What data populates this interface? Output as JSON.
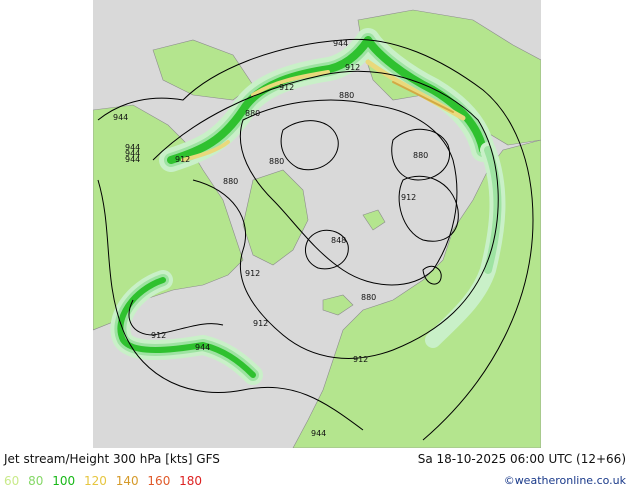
{
  "map": {
    "colors": {
      "background": "#d9d9d9",
      "land": "#b4e58e",
      "coastline": "#8c8c8c",
      "contour": "#000000",
      "jet_60": "#c9f0c8",
      "jet_80": "#9ee3a2",
      "jet_100": "#2fc12f",
      "jet_120": "#e9d97c",
      "jet_140": "#d3a944"
    },
    "contour_labels": [
      "944",
      "912",
      "880",
      "912",
      "944",
      "912",
      "944",
      "944",
      "944",
      "912",
      "880",
      "880",
      "880",
      "880",
      "912",
      "848",
      "912",
      "912",
      "880",
      "912",
      "944",
      "944"
    ]
  },
  "footer": {
    "title": "Jet stream/Height 300 hPa [kts] GFS",
    "valid_time": "Sa 18-10-2025 06:00 UTC (12+66)",
    "credit": "©weatheronline.co.uk",
    "legend": [
      {
        "label": "60",
        "color": "#c9ea8a"
      },
      {
        "label": "80",
        "color": "#86d868"
      },
      {
        "label": "100",
        "color": "#18b818"
      },
      {
        "label": "120",
        "color": "#e6c640"
      },
      {
        "label": "140",
        "color": "#d59a2a"
      },
      {
        "label": "160",
        "color": "#e05a2a"
      },
      {
        "label": "180",
        "color": "#dd2222"
      }
    ]
  }
}
